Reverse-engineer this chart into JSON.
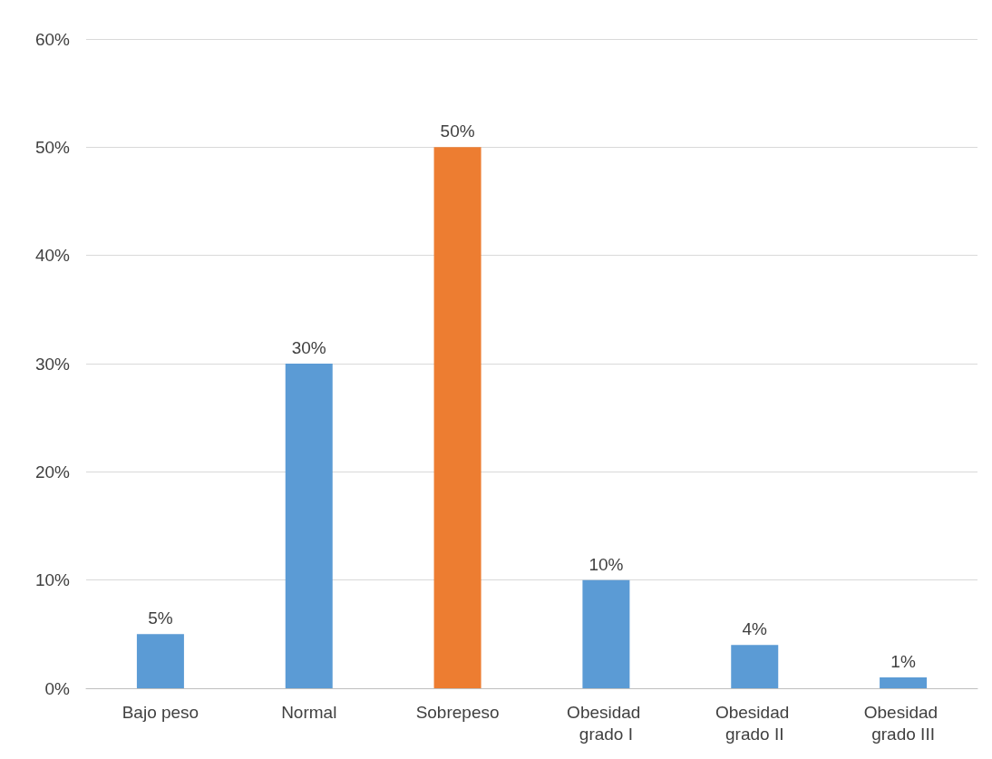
{
  "chart_data": {
    "type": "bar",
    "categories": [
      "Bajo peso",
      "Normal",
      "Sobrepeso",
      "Obesidad grado I",
      "Obesidad grado II",
      "Obesidad grado III"
    ],
    "values": [
      5,
      30,
      50,
      10,
      4,
      1
    ],
    "colors": [
      "#5b9bd5",
      "#5b9bd5",
      "#ed7d31",
      "#5b9bd5",
      "#5b9bd5",
      "#5b9bd5"
    ],
    "value_labels": [
      "5%",
      "30%",
      "50%",
      "10%",
      "4%",
      "1%"
    ],
    "ylim": [
      0,
      60
    ],
    "yticks": [
      {
        "value": 0,
        "label": "0%"
      },
      {
        "value": 10,
        "label": "10%"
      },
      {
        "value": 20,
        "label": "20%"
      },
      {
        "value": 30,
        "label": "30%"
      },
      {
        "value": 40,
        "label": "40%"
      },
      {
        "value": 50,
        "label": "50%"
      },
      {
        "value": 60,
        "label": "60%"
      }
    ],
    "grid": "y"
  }
}
